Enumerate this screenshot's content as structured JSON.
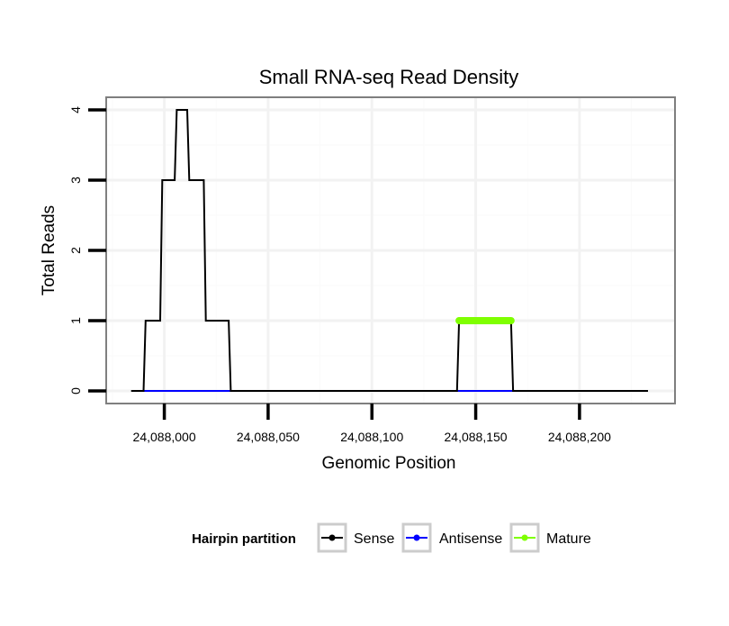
{
  "chart_data": {
    "type": "line",
    "title": "Small RNA-seq Read Density",
    "xlabel": "Genomic Position",
    "ylabel": "Total Reads",
    "xlim": [
      24087972,
      24088246
    ],
    "ylim": [
      -0.18,
      4.18
    ],
    "x_ticks": [
      24088000,
      24088050,
      24088100,
      24088150,
      24088200
    ],
    "x_tick_labels": [
      "24,088,000",
      "24,088,050",
      "24,088,100",
      "24,088,150",
      "24,088,200"
    ],
    "y_ticks": [
      0,
      1,
      2,
      3,
      4
    ],
    "y_tick_labels": [
      "0",
      "1",
      "2",
      "3",
      "4"
    ],
    "grid": true,
    "legend": {
      "title": "Hairpin partition",
      "position": "bottom",
      "entries": [
        "Sense",
        "Antisense",
        "Mature"
      ]
    },
    "series": [
      {
        "name": "Sense",
        "color": "#000000",
        "x": [
          24087984,
          24087990,
          24087991,
          24087998,
          24087999,
          24088005,
          24088006,
          24088011,
          24088012,
          24088019,
          24088020,
          24088023,
          24088024,
          24088031,
          24088032,
          24088141,
          24088142,
          24088167,
          24088168,
          24088233
        ],
        "values": [
          0,
          0,
          1,
          1,
          3,
          3,
          4,
          4,
          3,
          3,
          1,
          1,
          1,
          1,
          0,
          0,
          1,
          1,
          0,
          0
        ]
      },
      {
        "name": "Antisense",
        "color": "#0000ff",
        "x": [
          24087990,
          24088032,
          24088141,
          24088168
        ],
        "values": [
          0,
          0,
          0,
          0
        ],
        "segments": [
          [
            24087990,
            24088032
          ],
          [
            24088141,
            24088168
          ]
        ]
      },
      {
        "name": "Mature",
        "color": "#7fff00",
        "x": [
          24088142,
          24088167
        ],
        "values": [
          1,
          1
        ]
      }
    ]
  }
}
